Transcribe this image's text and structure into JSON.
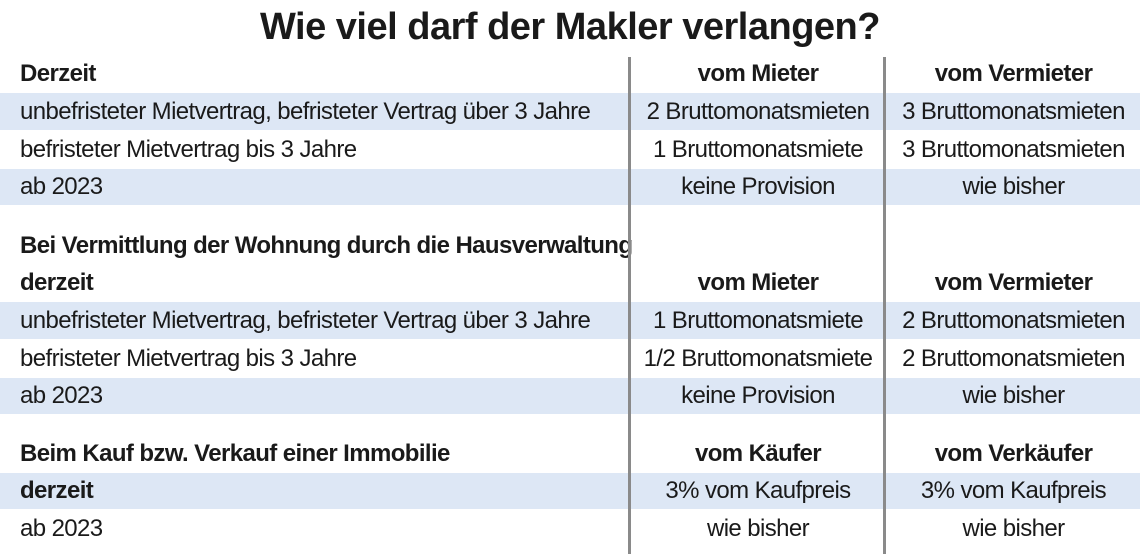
{
  "title": "Wie viel darf der Makler verlangen?",
  "sections": [
    {
      "header": {
        "label": "Derzeit",
        "col2": "vom Mieter",
        "col3": "vom Vermieter"
      },
      "rows": [
        {
          "label": "unbefristeter Mietvertrag, befristeter Vertrag über 3 Jahre",
          "col2": "2 Bruttomonatsmieten",
          "col3": "3 Bruttomonatsmieten"
        },
        {
          "label": "befristeter Mietvertrag bis 3 Jahre",
          "col2": "1 Bruttomonatsmiete",
          "col3": "3 Bruttomonatsmieten"
        },
        {
          "label": "ab 2023",
          "col2": "keine Provision",
          "col3": "wie bisher"
        }
      ]
    },
    {
      "heading": "Bei Vermittlung der Wohnung durch die Hausverwaltung",
      "header": {
        "label": "derzeit",
        "col2": "vom Mieter",
        "col3": "vom Vermieter"
      },
      "rows": [
        {
          "label": "unbefristeter Mietvertrag, befristeter Vertrag über 3 Jahre",
          "col2": "1 Bruttomonatsmiete",
          "col3": "2 Bruttomonatsmieten"
        },
        {
          "label": "befristeter Mietvertrag bis 3 Jahre",
          "col2": "1/2 Bruttomonatsmiete",
          "col3": "2 Bruttomonatsmieten"
        },
        {
          "label": "ab 2023",
          "col2": "keine Provision",
          "col3": "wie bisher"
        }
      ]
    },
    {
      "header": {
        "label": "Beim Kauf bzw. Verkauf einer Immobilie",
        "col2": "vom Käufer",
        "col3": "vom Verkäufer"
      },
      "rows": [
        {
          "label": "derzeit",
          "col2": "3% vom Kaufpreis",
          "col3": "3% vom Kaufpreis"
        },
        {
          "label": "ab 2023",
          "col2": "wie bisher",
          "col3": "wie bisher"
        }
      ]
    }
  ]
}
